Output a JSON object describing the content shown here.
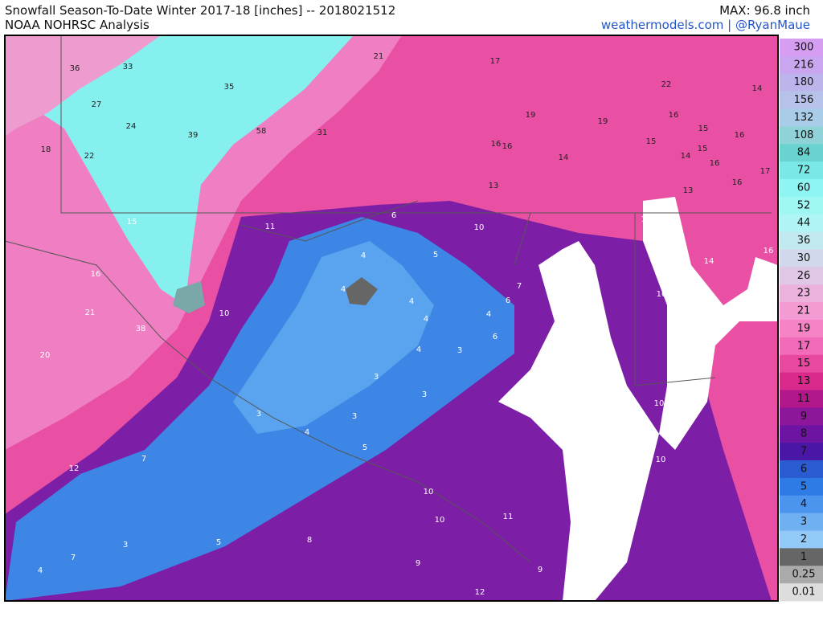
{
  "header": {
    "title": "Snowfall Season-To-Date Winter 2017-18 [inches] -- 2018021512",
    "subtitle": "NOAA NOHRSC Analysis",
    "max": "MAX: 96.8 inch",
    "credit": "weathermodels.com | @RyanMaue"
  },
  "legend": {
    "labels": [
      300,
      216,
      180,
      156,
      132,
      108,
      84,
      72,
      60,
      52,
      44,
      36,
      30,
      26,
      23,
      21,
      19,
      17,
      15,
      13,
      11,
      9,
      8,
      7,
      6,
      5,
      4,
      3,
      2,
      1,
      0.25,
      0.01
    ],
    "colors": [
      "#d69ef2",
      "#c9a6ef",
      "#bdb4ec",
      "#b7c2ea",
      "#a9cde8",
      "#8fd2d8",
      "#6ad3cf",
      "#7ae8e6",
      "#8ff5f2",
      "#9ff7f4",
      "#b0f5f5",
      "#c2e9f0",
      "#d2d8ec",
      "#dfc8e6",
      "#ebb2de",
      "#f39bd2",
      "#f583c6",
      "#f26bbb",
      "#e9489f",
      "#d92a8c",
      "#b3188a",
      "#8c179a",
      "#6d14a2",
      "#4a16a6",
      "#2a5bd1",
      "#2f7be6",
      "#4c95ee",
      "#6eb0f2",
      "#93c9f6",
      "#666666",
      "#aaaaaa",
      "#dddddd"
    ]
  },
  "map_labels": [
    36,
    33,
    35,
    27,
    24,
    39,
    58,
    31,
    21,
    17,
    22,
    14,
    18,
    22,
    19,
    19,
    16,
    15,
    16,
    16,
    16,
    14,
    15,
    14,
    15,
    16,
    17,
    16,
    13,
    13,
    15,
    11,
    6,
    10,
    12,
    8,
    16,
    5,
    4,
    9,
    14,
    16,
    21,
    10,
    4,
    7,
    6,
    10,
    4,
    4,
    4,
    6,
    38,
    4,
    3,
    20,
    3,
    16,
    3,
    3,
    9,
    10,
    3,
    4,
    5,
    7,
    12,
    10,
    10,
    11,
    10,
    10,
    5,
    3,
    8,
    9,
    7,
    9,
    4,
    12
  ]
}
